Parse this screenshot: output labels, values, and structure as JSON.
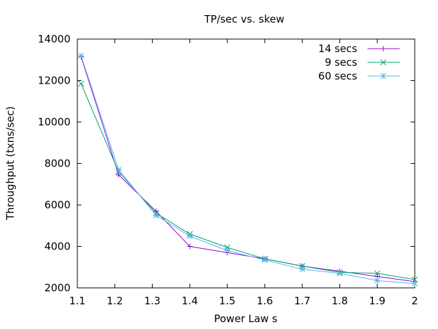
{
  "chart_data": {
    "type": "line",
    "title": "TP/sec vs. skew",
    "xlabel": "Power Law s",
    "ylabel": "Throughput (txns/sec)",
    "xlim": [
      1.1,
      2.0
    ],
    "ylim": [
      2000,
      14000
    ],
    "xticks": [
      "1.1",
      "1.2",
      "1.3",
      "1.4",
      "1.5",
      "1.6",
      "1.7",
      "1.8",
      "1.9",
      "2"
    ],
    "yticks": [
      "2000",
      "4000",
      "6000",
      "8000",
      "10000",
      "12000",
      "14000"
    ],
    "grid": false,
    "legend_position": "top-right",
    "series": [
      {
        "name": "14 secs",
        "color": "#9400d3",
        "marker": "plus",
        "x": [
          1.11,
          1.21,
          1.31,
          1.4,
          1.5,
          1.6,
          1.7,
          1.8,
          1.9,
          2.0
        ],
        "y": [
          13150,
          7450,
          5700,
          4000,
          3700,
          3400,
          3050,
          2800,
          2550,
          2300
        ]
      },
      {
        "name": "9 secs",
        "color": "#009e73",
        "marker": "cross",
        "x": [
          1.11,
          1.21,
          1.31,
          1.4,
          1.5,
          1.6,
          1.7,
          1.8,
          1.9,
          2.0
        ],
        "y": [
          11850,
          7600,
          5600,
          4600,
          3950,
          3400,
          3050,
          2750,
          2700,
          2400
        ]
      },
      {
        "name": "60 secs",
        "color": "#56b4e9",
        "marker": "star",
        "x": [
          1.11,
          1.21,
          1.31,
          1.4,
          1.5,
          1.6,
          1.7,
          1.8,
          1.9,
          2.0
        ],
        "y": [
          13200,
          7700,
          5500,
          4500,
          3800,
          3350,
          2900,
          2700,
          2350,
          2200
        ]
      }
    ]
  }
}
